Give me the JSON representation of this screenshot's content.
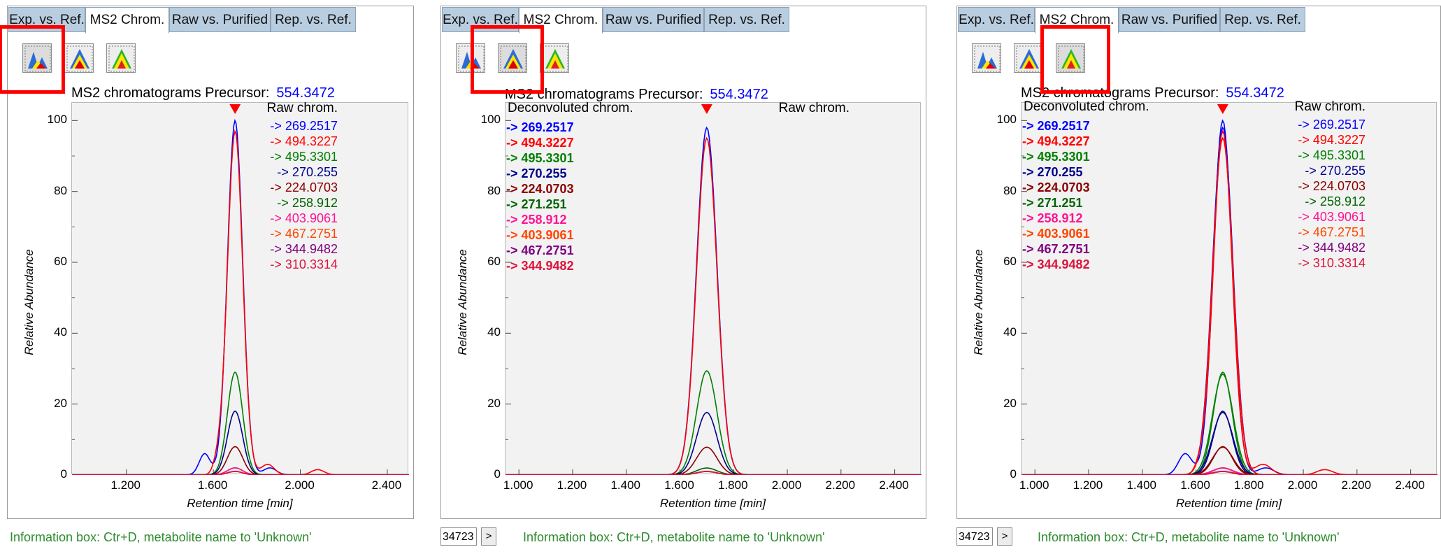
{
  "tabs": [
    "Exp. vs. Ref.",
    "MS2 Chrom.",
    "Raw vs. Purified",
    "Rep. vs. Ref."
  ],
  "precursor_label": "MS2 chromatograms Precursor:",
  "precursor_value": "554.3472",
  "y_axis_label": "Relative Abundance",
  "x_axis_label": "Retention time [min]",
  "y_ticks": [
    "0",
    "20",
    "40",
    "60",
    "80",
    "100"
  ],
  "info_text": "Information box: Ctr+D, metabolite name to 'Unknown'",
  "scroll_value": "34723",
  "scroll_arrow": ">",
  "icons": [
    "raw-chromatogram-icon",
    "deconvoluted-chromatogram-icon",
    "overlay-chromatogram-icon"
  ],
  "colors": {
    "highlight": "#ff0000",
    "tab_bg": "#b9cde0",
    "precursor": "#0000ff",
    "info": "#2e8b2e",
    "plot_bg": "#f2f2f2"
  },
  "panels": [
    {
      "selected_mode_index": 0,
      "x_ticks": [
        "1.200",
        "1.600",
        "2.000",
        "2.400"
      ],
      "raw_title": "Raw chrom.",
      "raw_legend": [
        "-> 269.2517",
        "-> 494.3227",
        "-> 495.3301",
        "-> 270.255",
        "-> 224.0703",
        "-> 258.912",
        "-> 403.9061",
        "-> 467.2751",
        "-> 344.9482",
        "-> 310.3314"
      ],
      "deconv_title": "",
      "deconv_legend": [],
      "has_scroll": false
    },
    {
      "selected_mode_index": 1,
      "x_ticks": [
        "1.000",
        "1.200",
        "1.400",
        "1.600",
        "1.800",
        "2.000",
        "2.200",
        "2.400"
      ],
      "raw_title": "Raw chrom.",
      "raw_legend": [],
      "deconv_title": "Deconvoluted chrom.",
      "deconv_legend": [
        "-> 269.2517",
        "-> 494.3227",
        "-> 495.3301",
        "-> 270.255",
        "-> 224.0703",
        "-> 271.251",
        "-> 258.912",
        "-> 403.9061",
        "-> 467.2751",
        "-> 344.9482"
      ],
      "has_scroll": true
    },
    {
      "selected_mode_index": 2,
      "x_ticks": [
        "1.000",
        "1.200",
        "1.400",
        "1.600",
        "1.800",
        "2.000",
        "2.200",
        "2.400"
      ],
      "raw_title": "Raw chrom.",
      "raw_legend": [
        "-> 269.2517",
        "-> 494.3227",
        "-> 495.3301",
        "-> 270.255",
        "-> 224.0703",
        "-> 258.912",
        "-> 403.9061",
        "-> 467.2751",
        "-> 344.9482",
        "-> 310.3314"
      ],
      "deconv_title": "Deconvoluted chrom.",
      "deconv_legend": [
        "-> 269.2517",
        "-> 494.3227",
        "-> 495.3301",
        "-> 270.255",
        "-> 224.0703",
        "-> 271.251",
        "-> 258.912",
        "-> 403.9061",
        "-> 467.2751",
        "-> 344.9482"
      ],
      "has_scroll": true
    }
  ],
  "legend_colors": [
    "#0000ff",
    "#ff0000",
    "#008000",
    "#00008b",
    "#8b0000",
    "#006400",
    "#ff1493",
    "#ff4500",
    "#800080",
    "#dc143c"
  ],
  "chart_data": [
    {
      "type": "line",
      "xlabel": "Retention time [min]",
      "ylabel": "Relative Abundance",
      "xlim": [
        0.95,
        2.5
      ],
      "ylim": [
        0,
        105
      ],
      "marker_x": 1.7,
      "series_peaks": [
        100,
        97,
        29,
        18,
        8,
        2,
        2,
        1,
        1,
        1
      ],
      "peak_x": 1.7,
      "mode": "raw"
    },
    {
      "type": "line",
      "xlabel": "Retention time [min]",
      "ylabel": "Relative Abundance",
      "xlim": [
        0.95,
        2.5
      ],
      "ylim": [
        0,
        105
      ],
      "marker_x": 1.7,
      "series_peaks": [
        100,
        97,
        30,
        18,
        8,
        2,
        1,
        1,
        1,
        1
      ],
      "peak_x": 1.7,
      "mode": "deconvoluted"
    },
    {
      "type": "line",
      "xlabel": "Retention time [min]",
      "ylabel": "Relative Abundance",
      "xlim": [
        0.95,
        2.5
      ],
      "ylim": [
        0,
        105
      ],
      "marker_x": 1.7,
      "series_peaks": [
        100,
        97,
        29,
        18,
        8,
        2,
        2,
        1,
        1,
        1
      ],
      "peak_x": 1.7,
      "mode": "overlay"
    }
  ]
}
